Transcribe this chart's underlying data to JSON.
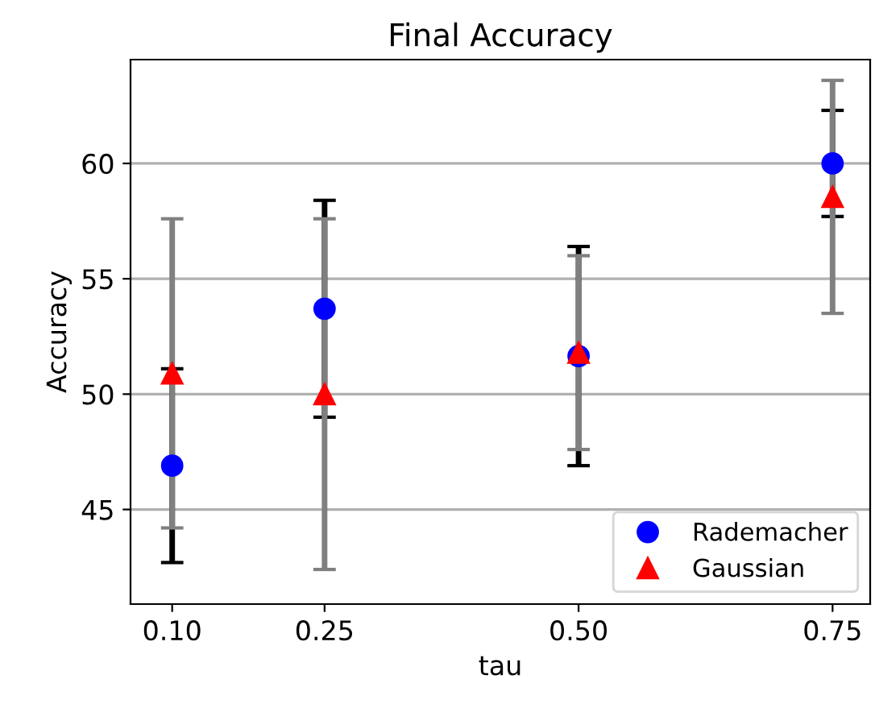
{
  "chart_data": {
    "type": "scatter",
    "title": "Final Accuracy",
    "xlabel": "tau",
    "ylabel": "Accuracy",
    "x": [
      0.1,
      0.25,
      0.5,
      0.75
    ],
    "series": [
      {
        "name": "Rademacher",
        "color": "#0000ff",
        "marker": "circle",
        "values": [
          46.9,
          53.7,
          51.65,
          60.0
        ],
        "errors": [
          4.2,
          4.7,
          4.75,
          2.3
        ]
      },
      {
        "name": "Gaussian",
        "color": "#ff0000",
        "marker": "triangle",
        "values": [
          50.9,
          50.0,
          51.8,
          58.55
        ],
        "errors": [
          6.7,
          7.6,
          4.2,
          5.05
        ]
      }
    ],
    "xlim": [
      0.059,
      0.787
    ],
    "ylim": [
      40.9,
      64.5
    ],
    "xticks": [
      {
        "value": 0.1,
        "label": "0.10"
      },
      {
        "value": 0.25,
        "label": "0.25"
      },
      {
        "value": 0.5,
        "label": "0.50"
      },
      {
        "value": 0.75,
        "label": "0.75"
      }
    ],
    "yticks": [
      45,
      50,
      55,
      60
    ],
    "grid": "y",
    "legend": "lower right"
  }
}
